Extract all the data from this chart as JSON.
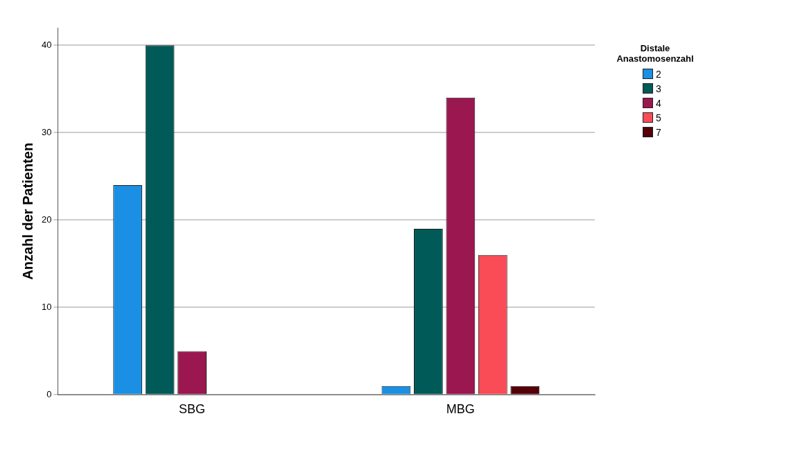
{
  "chart_data": {
    "type": "bar",
    "ylabel": "Anzahl der Patienten",
    "legend_title": "Distale Anastomosenzahl",
    "categories": [
      "SBG",
      "MBG"
    ],
    "series": [
      {
        "name": "2",
        "color": "#1a8fe3",
        "values": [
          24,
          1
        ]
      },
      {
        "name": "3",
        "color": "#005a57",
        "values": [
          40,
          19
        ]
      },
      {
        "name": "4",
        "color": "#9b1750",
        "values": [
          5,
          34
        ]
      },
      {
        "name": "5",
        "color": "#f94c56",
        "values": [
          null,
          16
        ]
      },
      {
        "name": "7",
        "color": "#550008",
        "values": [
          null,
          1
        ]
      }
    ],
    "ylim": [
      0,
      42
    ],
    "yticks": [
      0,
      10,
      20,
      30,
      40
    ],
    "grid": "y",
    "legend": "top right"
  }
}
